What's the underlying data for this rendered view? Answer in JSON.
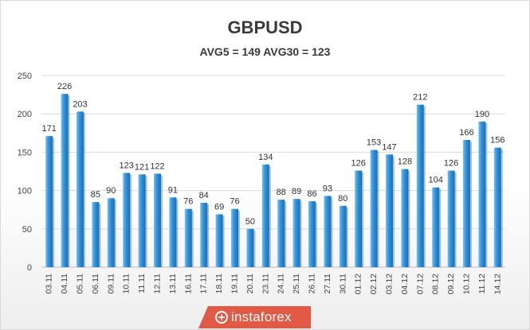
{
  "chart_data": {
    "type": "bar",
    "title": "GBPUSD",
    "subtitle": "AVG5 = 149 AVG30 = 123",
    "categories": [
      "03.11",
      "04.11",
      "05.11",
      "06.11",
      "09.11",
      "10.11",
      "11.11",
      "12.11",
      "13.11",
      "16.11",
      "17.11",
      "18.11",
      "19.11",
      "20.11",
      "23.11",
      "24.11",
      "25.11",
      "26.11",
      "27.11",
      "30.11",
      "01.12",
      "02.12",
      "03.12",
      "04.12",
      "07.12",
      "08.12",
      "09.12",
      "10.12",
      "11.12",
      "14.12"
    ],
    "values": [
      171,
      226,
      203,
      85,
      90,
      123,
      121,
      122,
      91,
      76,
      84,
      69,
      76,
      50,
      134,
      88,
      89,
      86,
      93,
      80,
      126,
      153,
      147,
      128,
      212,
      104,
      126,
      166,
      190,
      156
    ],
    "ylim": [
      0,
      250
    ],
    "yticks": [
      0,
      50,
      100,
      150,
      200,
      250
    ],
    "grid": true,
    "legend": "none",
    "bar_color": "#2f8fd8",
    "bar_color_light": "#6ec0f5"
  },
  "watermark": {
    "text": "instaforex"
  }
}
